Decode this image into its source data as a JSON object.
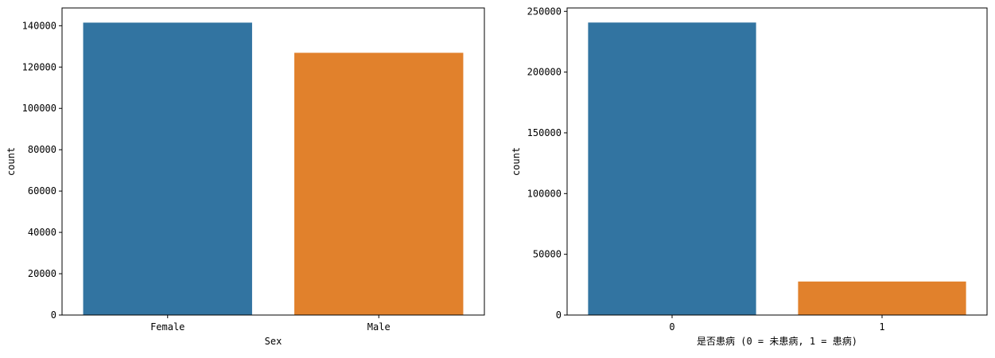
{
  "chart_data": [
    {
      "type": "bar",
      "x_label": "Sex",
      "y_label": "count",
      "categories": [
        "Female",
        "Male"
      ],
      "values": [
        141500,
        126900
      ],
      "colors": [
        "#3274a1",
        "#e1812c"
      ],
      "ylim": [
        0,
        148600
      ],
      "yticks": [
        0,
        20000,
        40000,
        60000,
        80000,
        100000,
        120000,
        140000
      ]
    },
    {
      "type": "bar",
      "x_label": "是否患病 (0 = 未患病, 1 = 患病)",
      "y_label": "count",
      "categories": [
        "0",
        "1"
      ],
      "values": [
        240800,
        27600
      ],
      "colors": [
        "#3274a1",
        "#e1812c"
      ],
      "ylim": [
        0,
        252800
      ],
      "yticks": [
        0,
        50000,
        100000,
        150000,
        200000,
        250000
      ]
    }
  ]
}
